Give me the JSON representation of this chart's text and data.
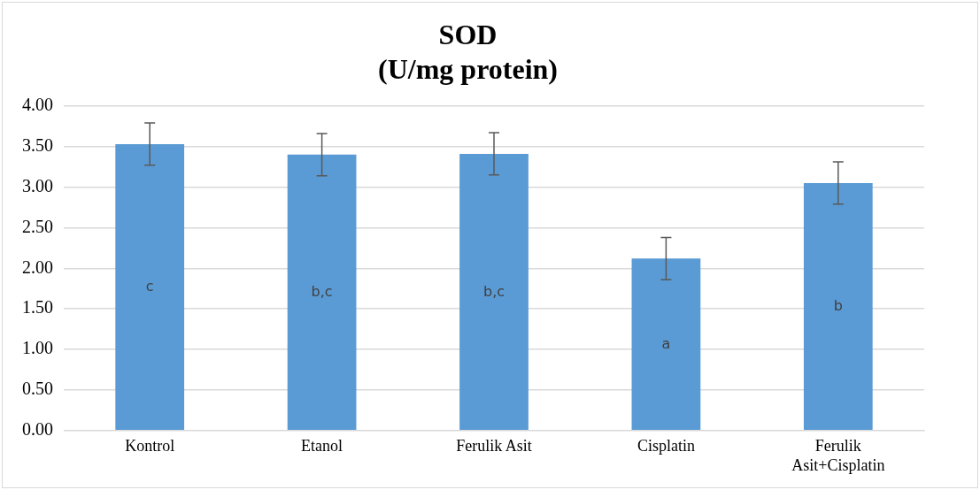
{
  "chart_data": {
    "type": "bar",
    "title": "SOD",
    "subtitle": "(U/mg protein)",
    "categories": [
      "Kontrol",
      "Etanol",
      "Ferulik Asit",
      "Cisplatin",
      "Ferulik Asit+Cisplatin"
    ],
    "values": [
      3.53,
      3.4,
      3.41,
      2.12,
      3.05
    ],
    "errors": [
      0.26,
      0.26,
      0.26,
      0.26,
      0.26
    ],
    "color": "#5b9bd5",
    "ylim": [
      0,
      4
    ],
    "yticks": [
      {
        "value": 0,
        "label": "0.00"
      },
      {
        "value": 0.5,
        "label": "0.50"
      },
      {
        "value": 1,
        "label": "1.00"
      },
      {
        "value": 1.5,
        "label": "1.50"
      },
      {
        "value": 2,
        "label": "2.00"
      },
      {
        "value": 2.5,
        "label": "2.50"
      },
      {
        "value": 3,
        "label": "3.00"
      },
      {
        "value": 3.5,
        "label": "3.50"
      },
      {
        "value": 4,
        "label": "4.00"
      }
    ],
    "grid": "y",
    "value_labels": [
      "c",
      "b,c",
      "b,c",
      "a",
      "b"
    ]
  }
}
